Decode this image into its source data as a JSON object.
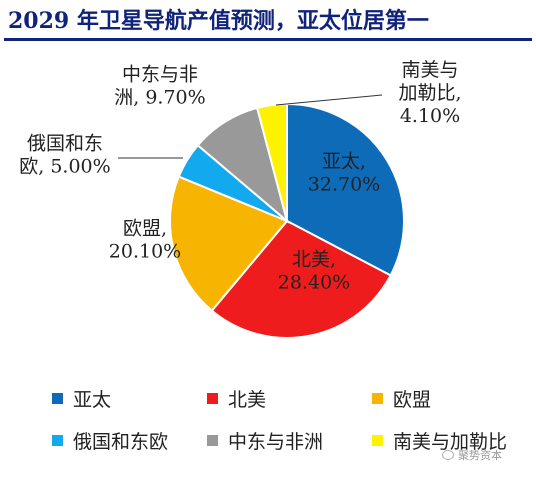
{
  "title": "2029 年卫星导航产值预测，亚太位居第一",
  "chart_data": {
    "type": "pie",
    "title": "2029 年卫星导航产值预测，亚太位居第一",
    "slices": [
      {
        "name": "亚太",
        "label": [
          "亚太,",
          "32.70%"
        ],
        "value": 32.7,
        "color": "#0e6bb8"
      },
      {
        "name": "北美",
        "label": [
          "北美,",
          "28.40%"
        ],
        "value": 28.4,
        "color": "#ee1c1c"
      },
      {
        "name": "欧盟",
        "label": [
          "欧盟,",
          "20.10%"
        ],
        "value": 20.1,
        "color": "#f7b400"
      },
      {
        "name": "俄国和东欧",
        "label": [
          "俄国和东",
          "欧, 5.00%"
        ],
        "value": 5.0,
        "color": "#12a9ee"
      },
      {
        "name": "中东与非洲",
        "label": [
          "中东与非",
          "洲, 9.70%"
        ],
        "value": 9.7,
        "color": "#999999"
      },
      {
        "name": "南美与加勒比",
        "label": [
          "南美与",
          "加勒比,",
          "4.10%"
        ],
        "value": 4.1,
        "color": "#fff200"
      }
    ],
    "legend_position": "bottom"
  },
  "watermark": "聚势资本"
}
